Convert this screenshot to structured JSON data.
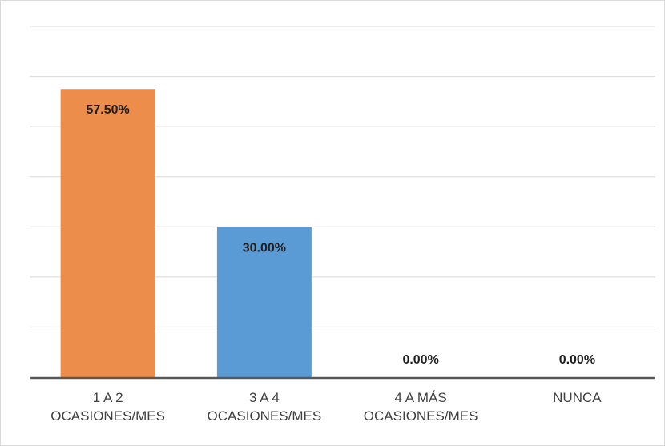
{
  "chart_data": {
    "type": "bar",
    "title": "",
    "xlabel": "",
    "ylabel": "",
    "ylim": [
      0,
      70
    ],
    "y_gridline_step": 10,
    "y_tick_labels_visible": false,
    "grid": true,
    "categories": [
      [
        "1 A 2",
        "OCASIONES/MES"
      ],
      [
        "3 A 4",
        "OCASIONES/MES"
      ],
      [
        "4 A MÁS",
        "OCASIONES/MES"
      ],
      [
        "NUNCA"
      ]
    ],
    "values": [
      57.5,
      30.0,
      0.0,
      0.0
    ],
    "data_labels": [
      "57.50%",
      "30.00%",
      "0.00%",
      "0.00%"
    ],
    "colors": [
      "#ed8d4c",
      "#5b9bd5",
      "#5b9bd5",
      "#5b9bd5"
    ],
    "gridline_color": "#d9d9d9",
    "axis_color": "#595959"
  }
}
